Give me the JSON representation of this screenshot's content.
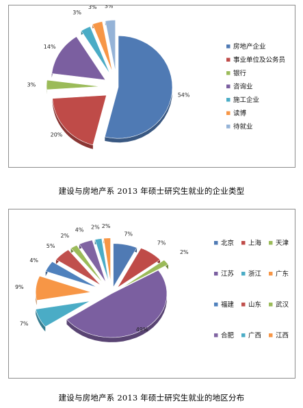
{
  "chart_data": [
    {
      "type": "pie",
      "categories": [
        "房地产企业",
        "事业单位及公务员",
        "银行",
        "咨询业",
        "施工企业",
        "读博",
        "待就业"
      ],
      "values": [
        54,
        20,
        3,
        14,
        3,
        3,
        3
      ],
      "value_labels": [
        "54%",
        "20%",
        "3%",
        "14%",
        "3%",
        "3%",
        "3%"
      ],
      "colors": [
        "#4f7ab4",
        "#bf4b48",
        "#9bbb59",
        "#7b5fa0",
        "#4aacc6",
        "#f79646",
        "#95b3d7"
      ],
      "exploded": true,
      "legend": "right",
      "title": "建设与房地产系 2013 年硕士研究生就业的企业类型"
    },
    {
      "type": "pie",
      "categories": [
        "北京",
        "上海",
        "天津",
        "江苏",
        "浙江",
        "广东",
        "福建",
        "山东",
        "武汉",
        "合肥",
        "广西",
        "江西"
      ],
      "values": [
        7,
        7,
        2,
        49,
        7,
        9,
        4,
        5,
        2,
        4,
        2,
        2
      ],
      "value_labels": [
        "7%",
        "7%",
        "2%",
        "49%",
        "7%",
        "9%",
        "4%",
        "5%",
        "2%",
        "4%",
        "2%",
        "2%"
      ],
      "colors": [
        "#4f7ab4",
        "#bf4b48",
        "#9bbb59",
        "#7b5fa0",
        "#4aacc6",
        "#f79646",
        "#4f81bd",
        "#c0504d",
        "#9bbb59",
        "#8064a2",
        "#4bacc6",
        "#f79646"
      ],
      "exploded": true,
      "legend": "right",
      "title": "建设与房地产系 2013 年硕士研究生就业的地区分布"
    }
  ]
}
